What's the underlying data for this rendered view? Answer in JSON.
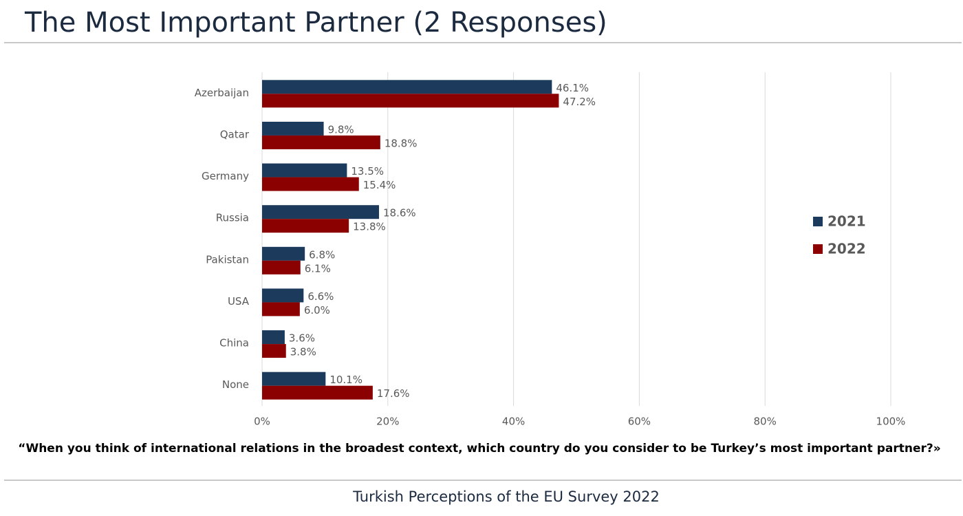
{
  "chart_data": {
    "type": "bar",
    "orientation": "horizontal",
    "title": "The Most Important Partner (2 Responses)",
    "question": "“When you think of international relations in the broadest context, which country do you consider to be Turkey’s most important partner?»",
    "footer": "Turkish Perceptions of the EU Survey 2022",
    "categories": [
      "Azerbaijan",
      "Qatar",
      "Germany",
      "Russia",
      "Pakistan",
      "USA",
      "China",
      "None"
    ],
    "series": [
      {
        "name": "2021",
        "color": "#1b3a5c",
        "values": [
          46.1,
          9.8,
          13.5,
          18.6,
          6.8,
          6.6,
          3.6,
          10.1
        ],
        "value_labels": [
          "46.1%",
          "9.8%",
          "13.5%",
          "18.6%",
          "6.8%",
          "6.6%",
          "3.6%",
          "10.1%"
        ]
      },
      {
        "name": "2022",
        "color": "#8b0000",
        "values": [
          47.2,
          18.8,
          15.4,
          13.8,
          6.1,
          6.0,
          3.8,
          17.6
        ],
        "value_labels": [
          "47.2%",
          "18.8%",
          "15.4%",
          "13.8%",
          "6.1%",
          "6.0%",
          "3.8%",
          "17.6%"
        ]
      }
    ],
    "xlim": [
      0,
      100
    ],
    "xticks": [
      {
        "value": 0,
        "label": "0%"
      },
      {
        "value": 20,
        "label": "20%"
      },
      {
        "value": 40,
        "label": "40%"
      },
      {
        "value": 60,
        "label": "60%"
      },
      {
        "value": 80,
        "label": "80%"
      },
      {
        "value": 100,
        "label": "100%"
      }
    ],
    "grid": true,
    "legend": "right"
  }
}
